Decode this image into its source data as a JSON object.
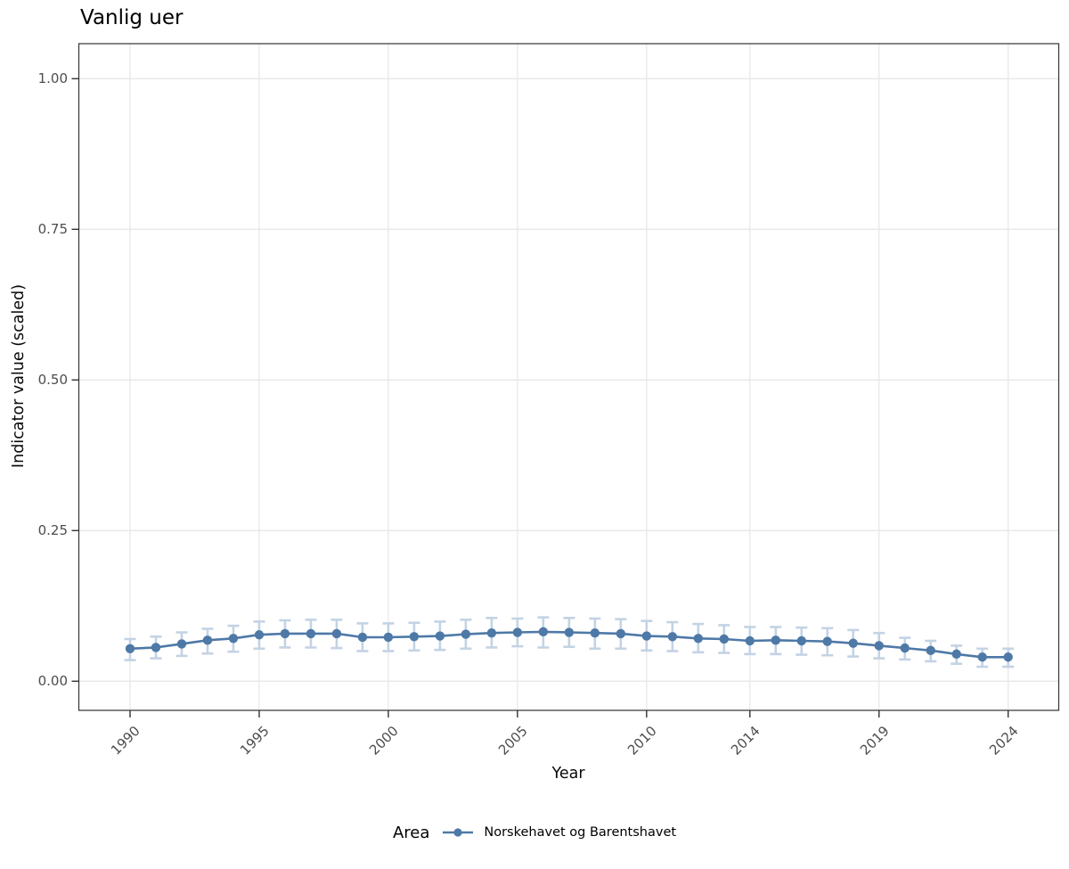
{
  "chart_data": {
    "type": "line",
    "title": "Vanlig uer",
    "xlabel": "Year",
    "ylabel": "Indicator value (scaled)",
    "legend_title": "Area",
    "legend_position": "bottom",
    "grid": true,
    "panel_border": true,
    "x": [
      1990,
      1991,
      1992,
      1993,
      1994,
      1995,
      1996,
      1997,
      1998,
      1999,
      2000,
      2001,
      2002,
      2003,
      2004,
      2005,
      2006,
      2007,
      2008,
      2009,
      2010,
      2011,
      2012,
      2013,
      2014,
      2015,
      2016,
      2017,
      2018,
      2019,
      2020,
      2021,
      2022,
      2023,
      2024
    ],
    "x_tick_years": [
      1990,
      1995,
      2000,
      2005,
      2010,
      2014,
      2019,
      2024
    ],
    "x_tick_labels": [
      "1990",
      "1995",
      "2000",
      "2005",
      "2010",
      "2014",
      "2019",
      "2024"
    ],
    "y_ticks": [
      0.0,
      0.25,
      0.5,
      0.75,
      1.0
    ],
    "y_tick_labels": [
      "0.00",
      "0.25",
      "0.50",
      "0.75",
      "1.00"
    ],
    "ylim": [
      -0.048,
      1.058
    ],
    "series": [
      {
        "name": "Norskehavet og Barentshavet",
        "color": "#4e79a7",
        "errorbar_color": "#c3d3e4",
        "values": [
          0.054,
          0.056,
          0.062,
          0.068,
          0.071,
          0.077,
          0.079,
          0.079,
          0.079,
          0.073,
          0.073,
          0.074,
          0.075,
          0.078,
          0.08,
          0.081,
          0.082,
          0.081,
          0.08,
          0.079,
          0.075,
          0.074,
          0.071,
          0.07,
          0.067,
          0.068,
          0.067,
          0.066,
          0.063,
          0.059,
          0.055,
          0.051,
          0.045,
          0.04,
          0.04
        ],
        "error_low": [
          0.035,
          0.038,
          0.042,
          0.046,
          0.049,
          0.054,
          0.056,
          0.056,
          0.055,
          0.05,
          0.05,
          0.051,
          0.052,
          0.054,
          0.056,
          0.058,
          0.056,
          0.057,
          0.054,
          0.054,
          0.051,
          0.05,
          0.048,
          0.047,
          0.045,
          0.045,
          0.044,
          0.043,
          0.041,
          0.038,
          0.036,
          0.033,
          0.029,
          0.024,
          0.024
        ],
        "error_high": [
          0.07,
          0.074,
          0.081,
          0.087,
          0.092,
          0.099,
          0.101,
          0.102,
          0.102,
          0.096,
          0.096,
          0.097,
          0.099,
          0.102,
          0.105,
          0.104,
          0.106,
          0.105,
          0.104,
          0.103,
          0.1,
          0.098,
          0.095,
          0.093,
          0.09,
          0.09,
          0.089,
          0.088,
          0.085,
          0.08,
          0.072,
          0.067,
          0.059,
          0.054,
          0.054
        ]
      }
    ],
    "colors": {
      "gridline": "#e8e8e8",
      "panel_border": "#333333",
      "tick_mark": "#333333",
      "tick_label": "#4d4d4d",
      "background": "#ffffff"
    }
  }
}
